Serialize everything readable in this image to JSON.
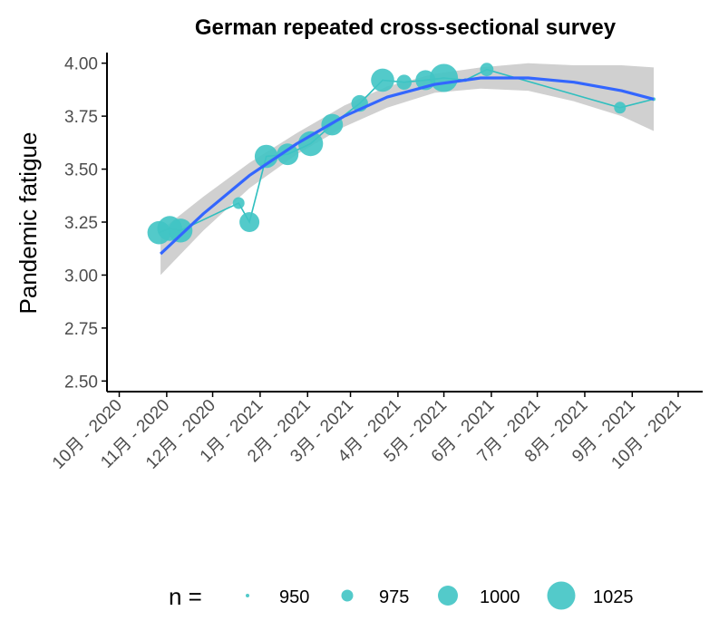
{
  "chart_data": {
    "type": "scatter",
    "title": "German repeated cross-sectional survey",
    "xlabel": "",
    "ylabel": "Pandemic fatigue",
    "ylim": [
      2.45,
      4.05
    ],
    "y_ticks": [
      "2.50",
      "2.75",
      "3.00",
      "3.25",
      "3.50",
      "3.75",
      "4.00"
    ],
    "y_tick_values": [
      2.5,
      2.75,
      3.0,
      3.25,
      3.5,
      3.75,
      4.0
    ],
    "x_tick_labels": [
      "10月 - 2020",
      "11月 - 2020",
      "12月 - 2020",
      "1月 - 2021",
      "2月 - 2021",
      "3月 - 2021",
      "4月 - 2021",
      "5月 - 2021",
      "6月 - 2021",
      "7月 - 2021",
      "8月 - 2021",
      "9月 - 2021",
      "10月 - 2021"
    ],
    "x_tick_dates": [
      "2020-10-01",
      "2020-11-01",
      "2020-12-01",
      "2021-01-01",
      "2021-02-01",
      "2021-03-01",
      "2021-04-01",
      "2021-05-01",
      "2021-06-01",
      "2021-07-01",
      "2021-08-01",
      "2021-09-01",
      "2021-10-01"
    ],
    "xlim": [
      "2020-09-23",
      "2021-10-17"
    ],
    "points": [
      {
        "date": "2020-10-27",
        "y": 3.2,
        "n": 1010
      },
      {
        "date": "2020-11-03",
        "y": 3.22,
        "n": 1015
      },
      {
        "date": "2020-11-10",
        "y": 3.21,
        "n": 1012
      },
      {
        "date": "2020-12-18",
        "y": 3.34,
        "n": 975
      },
      {
        "date": "2020-12-25",
        "y": 3.25,
        "n": 1000
      },
      {
        "date": "2021-01-05",
        "y": 3.56,
        "n": 1010
      },
      {
        "date": "2021-01-19",
        "y": 3.57,
        "n": 1005
      },
      {
        "date": "2021-02-03",
        "y": 3.62,
        "n": 1015
      },
      {
        "date": "2021-02-17",
        "y": 3.71,
        "n": 1005
      },
      {
        "date": "2021-03-07",
        "y": 3.81,
        "n": 990
      },
      {
        "date": "2021-03-22",
        "y": 3.92,
        "n": 1010
      },
      {
        "date": "2021-04-05",
        "y": 3.91,
        "n": 985
      },
      {
        "date": "2021-04-19",
        "y": 3.92,
        "n": 1000
      },
      {
        "date": "2021-05-01",
        "y": 3.93,
        "n": 1025
      },
      {
        "date": "2021-05-15",
        "y": 3.92,
        "n": 950
      },
      {
        "date": "2021-05-29",
        "y": 3.97,
        "n": 980
      },
      {
        "date": "2021-08-24",
        "y": 3.79,
        "n": 975
      },
      {
        "date": "2021-09-15",
        "y": 3.83,
        "n": 950
      }
    ],
    "smooth": [
      {
        "date": "2020-10-28",
        "y": 3.1,
        "lo": 3.0,
        "hi": 3.21
      },
      {
        "date": "2020-11-25",
        "y": 3.29,
        "lo": 3.21,
        "hi": 3.37
      },
      {
        "date": "2020-12-25",
        "y": 3.47,
        "lo": 3.41,
        "hi": 3.53
      },
      {
        "date": "2021-01-25",
        "y": 3.62,
        "lo": 3.57,
        "hi": 3.67
      },
      {
        "date": "2021-02-25",
        "y": 3.75,
        "lo": 3.7,
        "hi": 3.8
      },
      {
        "date": "2021-03-25",
        "y": 3.84,
        "lo": 3.79,
        "hi": 3.89
      },
      {
        "date": "2021-04-25",
        "y": 3.9,
        "lo": 3.86,
        "hi": 3.95
      },
      {
        "date": "2021-05-25",
        "y": 3.93,
        "lo": 3.88,
        "hi": 3.98
      },
      {
        "date": "2021-06-25",
        "y": 3.93,
        "lo": 3.87,
        "hi": 4.0
      },
      {
        "date": "2021-07-25",
        "y": 3.91,
        "lo": 3.82,
        "hi": 3.99
      },
      {
        "date": "2021-08-25",
        "y": 3.87,
        "lo": 3.75,
        "hi": 3.99
      },
      {
        "date": "2021-09-15",
        "y": 3.83,
        "lo": 3.68,
        "hi": 3.98
      }
    ],
    "legend": {
      "title": "n  =",
      "position": "bottom",
      "entries": [
        {
          "label": "950",
          "n": 950
        },
        {
          "label": "975",
          "n": 975
        },
        {
          "label": "1000",
          "n": 1000
        },
        {
          "label": "1025",
          "n": 1025
        }
      ]
    },
    "colors": {
      "points": "#40c4c4",
      "points_line": "#2fbfbf",
      "smooth": "#3366ff",
      "ribbon": "#d0d0d0",
      "axis": "#000000",
      "tick_text": "#4d4d4d"
    },
    "grid": false
  }
}
